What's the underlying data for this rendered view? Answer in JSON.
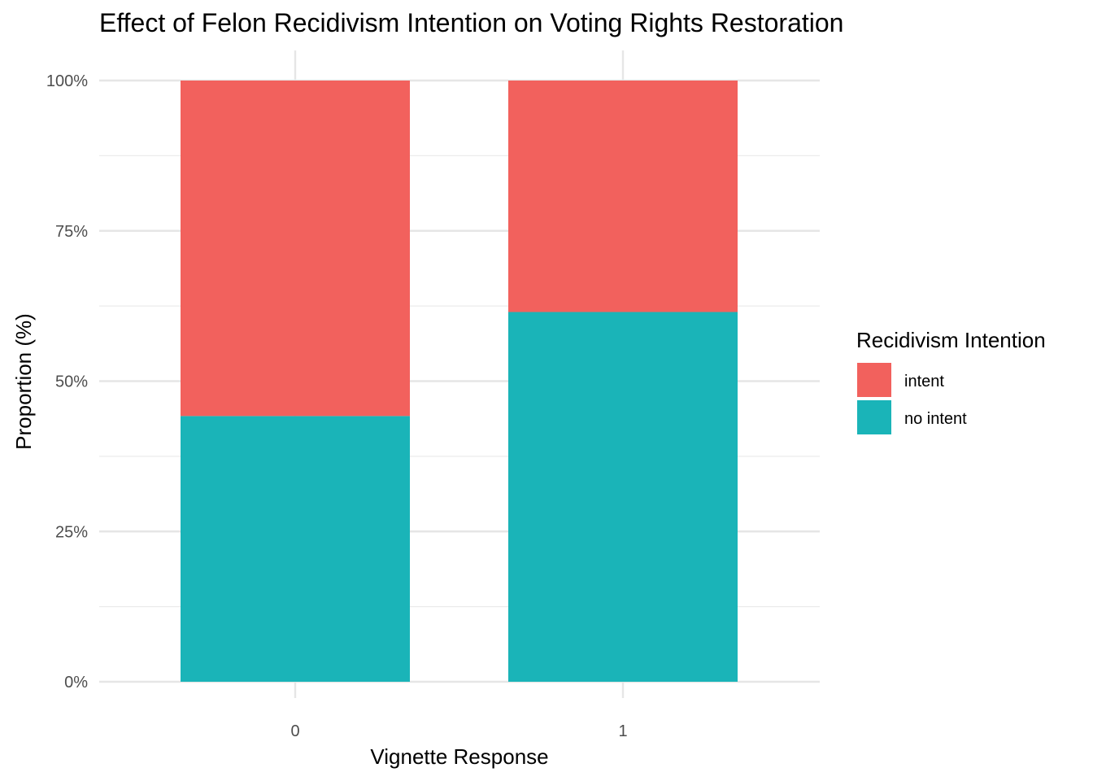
{
  "chart_data": {
    "type": "bar",
    "stacked": true,
    "normalized": true,
    "title": "Effect of Felon Recidivism Intention on Voting Rights Restoration",
    "xlabel": "Vignette Response",
    "ylabel": "Proportion (%)",
    "categories": [
      "0",
      "1"
    ],
    "ylim": [
      0,
      100
    ],
    "yticks": [
      {
        "value": 0,
        "label": "0%"
      },
      {
        "value": 25,
        "label": "25%"
      },
      {
        "value": 50,
        "label": "50%"
      },
      {
        "value": 75,
        "label": "75%"
      },
      {
        "value": 100,
        "label": "100%"
      }
    ],
    "series": [
      {
        "name": "intent",
        "color": "#F2615D",
        "values": [
          55.8,
          38.5
        ]
      },
      {
        "name": "no intent",
        "color": "#1AB4B8",
        "values": [
          44.2,
          61.5
        ]
      }
    ],
    "legend": {
      "title": "Recidivism Intention",
      "position": "right"
    },
    "grid": true
  }
}
